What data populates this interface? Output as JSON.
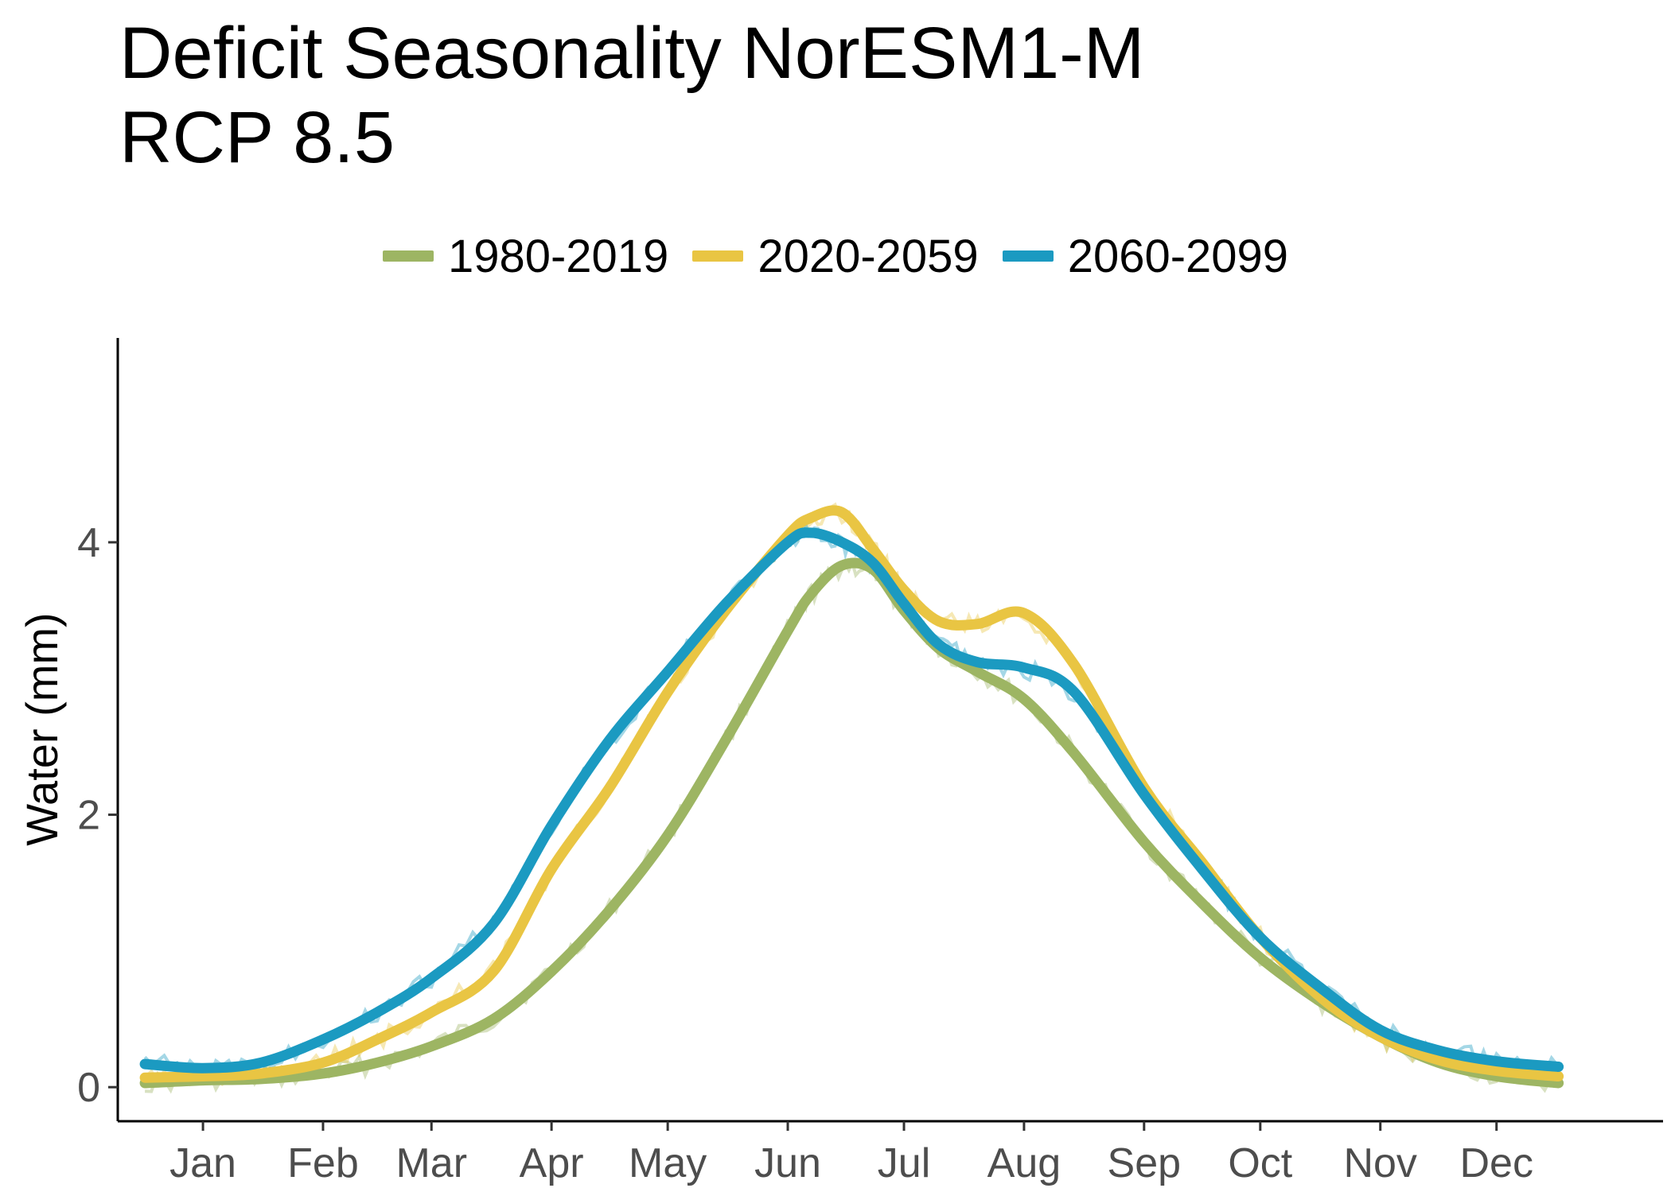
{
  "chart_data": {
    "type": "line",
    "title_lines": [
      "Deficit Seasonality NorESM1-M",
      "RCP 8.5"
    ],
    "xlabel": "",
    "ylabel": "Water (mm)",
    "x_ticks": [
      {
        "label": "Jan",
        "day": 15
      },
      {
        "label": "Feb",
        "day": 46
      },
      {
        "label": "Mar",
        "day": 74
      },
      {
        "label": "Apr",
        "day": 105
      },
      {
        "label": "May",
        "day": 135
      },
      {
        "label": "Jun",
        "day": 166
      },
      {
        "label": "Jul",
        "day": 196
      },
      {
        "label": "Aug",
        "day": 227
      },
      {
        "label": "Sep",
        "day": 258
      },
      {
        "label": "Oct",
        "day": 288
      },
      {
        "label": "Nov",
        "day": 319
      },
      {
        "label": "Dec",
        "day": 349
      }
    ],
    "xlim": [
      -7,
      392
    ],
    "y_ticks": [
      0,
      2,
      4
    ],
    "ylim": [
      -0.25,
      5.5
    ],
    "grid": false,
    "legend_position": "top",
    "series": [
      {
        "name": "1980-2019",
        "color": "#9db563",
        "x": [
          0,
          15,
          30,
          46,
          60,
          74,
          90,
          105,
          120,
          135,
          150,
          166,
          172,
          180,
          188,
          196,
          205,
          215,
          227,
          240,
          258,
          273,
          288,
          304,
          319,
          334,
          349,
          365
        ],
        "y": [
          0.03,
          0.05,
          0.06,
          0.1,
          0.18,
          0.3,
          0.5,
          0.85,
          1.3,
          1.85,
          2.55,
          3.35,
          3.62,
          3.83,
          3.8,
          3.5,
          3.22,
          3.05,
          2.85,
          2.45,
          1.8,
          1.35,
          0.95,
          0.62,
          0.37,
          0.18,
          0.08,
          0.03
        ]
      },
      {
        "name": "2020-2059",
        "color": "#e9c543",
        "x": [
          0,
          15,
          30,
          46,
          60,
          74,
          90,
          105,
          120,
          135,
          150,
          166,
          172,
          180,
          188,
          196,
          205,
          215,
          227,
          240,
          258,
          273,
          288,
          304,
          319,
          334,
          349,
          365
        ],
        "y": [
          0.07,
          0.08,
          0.1,
          0.18,
          0.35,
          0.55,
          0.85,
          1.6,
          2.2,
          2.9,
          3.5,
          4.05,
          4.18,
          4.22,
          3.95,
          3.65,
          3.42,
          3.4,
          3.48,
          3.1,
          2.2,
          1.65,
          1.1,
          0.65,
          0.37,
          0.2,
          0.12,
          0.08
        ]
      },
      {
        "name": "2060-2099",
        "color": "#1b9ac1",
        "x": [
          0,
          15,
          30,
          46,
          60,
          74,
          90,
          105,
          120,
          135,
          150,
          166,
          172,
          180,
          188,
          196,
          205,
          215,
          227,
          240,
          258,
          273,
          288,
          304,
          319,
          334,
          349,
          365
        ],
        "y": [
          0.17,
          0.14,
          0.18,
          0.35,
          0.55,
          0.8,
          1.2,
          1.92,
          2.55,
          3.05,
          3.55,
          4.0,
          4.07,
          4.0,
          3.85,
          3.55,
          3.25,
          3.12,
          3.08,
          2.9,
          2.15,
          1.6,
          1.1,
          0.72,
          0.42,
          0.27,
          0.19,
          0.15
        ]
      }
    ]
  }
}
